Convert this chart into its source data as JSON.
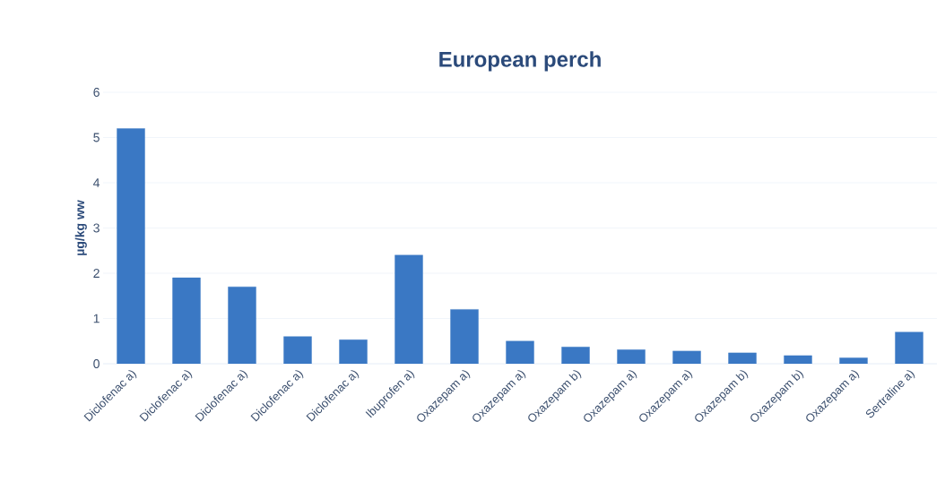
{
  "chart_data": {
    "type": "bar",
    "title": "European perch",
    "ylabel": "µg/kg ww",
    "categories": [
      "Diclofenac a)",
      "Diclofenac a)",
      "Diclofenac a)",
      "Diclofenac a)",
      "Diclofenac a)",
      "Ibuprofen a)",
      "Oxazepam a)",
      "Oxazepam a)",
      "Oxazepam b)",
      "Oxazepam a)",
      "Oxazepam a)",
      "Oxazepam b)",
      "Oxazepam b)",
      "Oxazepam a)",
      "Sertraline a)"
    ],
    "values": [
      5.2,
      1.9,
      1.7,
      0.6,
      0.53,
      2.4,
      1.2,
      0.5,
      0.37,
      0.31,
      0.28,
      0.24,
      0.18,
      0.13,
      0.7
    ],
    "color": "#3a78c4",
    "ylim": [
      0,
      6
    ],
    "yticks": [
      0,
      1,
      2,
      3,
      4,
      5,
      6
    ],
    "grid": "y"
  }
}
